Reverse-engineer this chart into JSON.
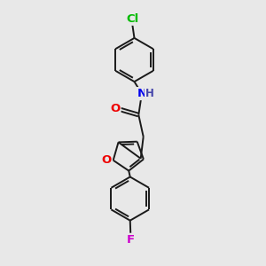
{
  "background_color": "#e8e8e8",
  "bond_color": "#1a1a1a",
  "bond_width": 1.4,
  "atom_colors": {
    "Cl": "#00bb00",
    "N": "#0000ee",
    "H": "#4444aa",
    "O": "#ee0000",
    "F": "#cc00cc",
    "C": "#1a1a1a"
  },
  "fig_width": 3.0,
  "fig_height": 3.0,
  "dpi": 100,
  "xlim": [
    0,
    10
  ],
  "ylim": [
    0,
    10
  ]
}
